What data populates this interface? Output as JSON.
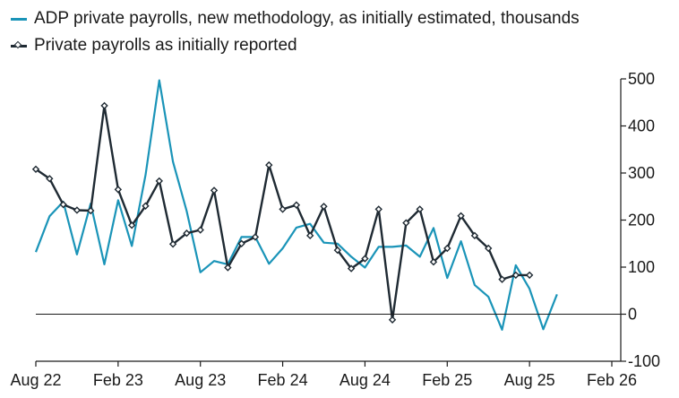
{
  "chart_data": {
    "type": "line",
    "title": "",
    "xlabel": "",
    "ylabel": "",
    "ylim": [
      -100,
      500
    ],
    "y_axis_side": "right",
    "y_ticks": [
      500,
      400,
      300,
      200,
      100,
      0,
      -100
    ],
    "x_ticks": [
      "Aug 22",
      "Feb 23",
      "Aug 23",
      "Feb 24",
      "Aug 24",
      "Feb 25",
      "Aug 25",
      "Feb 26"
    ],
    "x_tick_months": [
      "2022-08",
      "2023-02",
      "2023-08",
      "2024-02",
      "2024-08",
      "2025-02",
      "2025-08",
      "2026-02"
    ],
    "xlim": [
      "2022-08",
      "2026-02"
    ],
    "grid": false,
    "zero_line": true,
    "legend_position": "top-left",
    "series": [
      {
        "name": "ADP private payrolls, new methodology, as initially estimated, thousands",
        "color": "#1a94b8",
        "marker": "none",
        "x": [
          "2022-08",
          "2022-09",
          "2022-10",
          "2022-11",
          "2022-12",
          "2023-01",
          "2023-02",
          "2023-03",
          "2023-04",
          "2023-05",
          "2023-06",
          "2023-07",
          "2023-08",
          "2023-09",
          "2023-10",
          "2023-11",
          "2023-12",
          "2024-01",
          "2024-02",
          "2024-03",
          "2024-04",
          "2024-05",
          "2024-06",
          "2024-07",
          "2024-08",
          "2024-09",
          "2024-10",
          "2024-11",
          "2024-12",
          "2025-01",
          "2025-02",
          "2025-03",
          "2025-04",
          "2025-05",
          "2025-06",
          "2025-07",
          "2025-08",
          "2025-09",
          "2025-10"
        ],
        "values": [
          132,
          208,
          239,
          127,
          235,
          106,
          242,
          145,
          296,
          497,
          324,
          219,
          89,
          113,
          106,
          164,
          164,
          107,
          140,
          184,
          192,
          152,
          150,
          122,
          99,
          143,
          143,
          146,
          122,
          183,
          77,
          155,
          62,
          37,
          -33,
          104,
          54,
          -32,
          42
        ]
      },
      {
        "name": "Private payrolls as initially reported",
        "color": "#1f2a33",
        "marker": "diamond",
        "x": [
          "2022-08",
          "2022-09",
          "2022-10",
          "2022-11",
          "2022-12",
          "2023-01",
          "2023-02",
          "2023-03",
          "2023-04",
          "2023-05",
          "2023-06",
          "2023-07",
          "2023-08",
          "2023-09",
          "2023-10",
          "2023-11",
          "2023-12",
          "2024-01",
          "2024-02",
          "2024-03",
          "2024-04",
          "2024-05",
          "2024-06",
          "2024-07",
          "2024-08",
          "2024-09",
          "2024-10",
          "2024-11",
          "2024-12",
          "2025-01",
          "2025-02",
          "2025-03",
          "2025-04",
          "2025-05",
          "2025-06",
          "2025-07",
          "2025-08"
        ],
        "values": [
          308,
          288,
          233,
          221,
          220,
          443,
          265,
          189,
          230,
          283,
          149,
          172,
          179,
          263,
          99,
          150,
          164,
          317,
          223,
          232,
          167,
          229,
          136,
          97,
          118,
          223,
          -12,
          194,
          223,
          111,
          140,
          209,
          167,
          140,
          74,
          83,
          83
        ]
      }
    ]
  }
}
